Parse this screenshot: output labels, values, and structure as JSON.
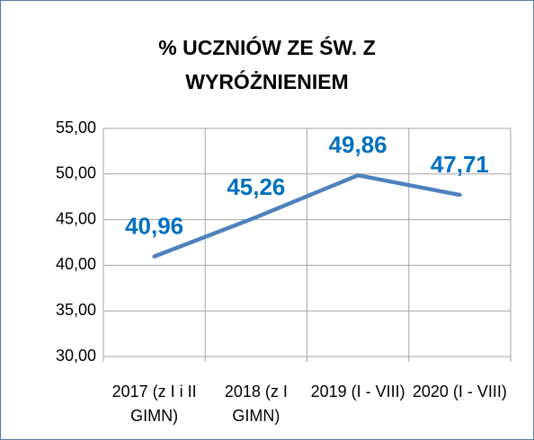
{
  "chart_data": {
    "type": "line",
    "title": "% UCZNIÓW ZE ŚW. Z WYRÓŻNIENIEM",
    "categories": [
      "2017 (z I i II GIMN)",
      "2018 (z I GIMN)",
      "2019 (I - VIII)",
      "2020 (I - VIII)"
    ],
    "series": [
      {
        "name": "% uczniów",
        "color": "#4f81bd",
        "values": [
          40.96,
          45.26,
          49.86,
          47.71
        ],
        "value_labels": [
          "40,96",
          "45,26",
          "49,86",
          "47,71"
        ]
      }
    ],
    "label_color": "#0070c0",
    "ylim": [
      30,
      55
    ],
    "yticks": [
      {
        "value": 30,
        "label": "30,00"
      },
      {
        "value": 35,
        "label": "35,00"
      },
      {
        "value": 40,
        "label": "40,00"
      },
      {
        "value": 45,
        "label": "45,00"
      },
      {
        "value": 50,
        "label": "50,00"
      },
      {
        "value": 55,
        "label": "55,00"
      }
    ],
    "grid": true
  }
}
